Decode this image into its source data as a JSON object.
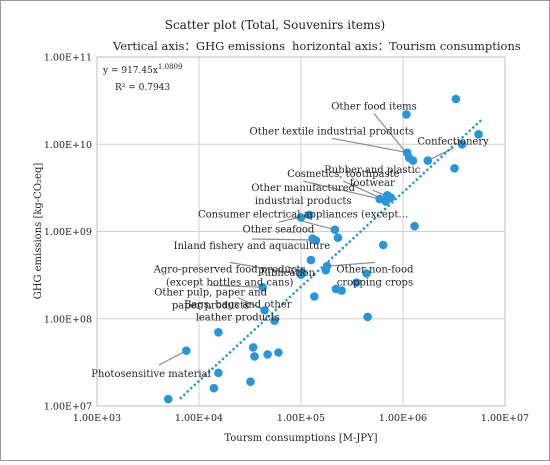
{
  "chart_data": {
    "type": "scatter",
    "title": "Scatter plot (Total, Souvenirs items)",
    "subtitle_left": "Vertical axis：GHG emissions",
    "subtitle_right": "horizontal axis：Tourism consumptions",
    "xlabel": "Toursm consumptions [M-JPY]",
    "ylabel": "GHG emissions [kg-CO₂eq]",
    "xscale": "log",
    "yscale": "log",
    "xlim": [
      1000,
      10000000
    ],
    "ylim": [
      10000000,
      100000000000
    ],
    "grid": true,
    "x_ticks": [
      {
        "value": 1000,
        "label": "1.00E+03"
      },
      {
        "value": 10000,
        "label": "1.00E+04"
      },
      {
        "value": 100000,
        "label": "1.00E+05"
      },
      {
        "value": 1000000,
        "label": "1.00E+06"
      },
      {
        "value": 10000000,
        "label": "1.00E+07"
      }
    ],
    "y_ticks": [
      {
        "value": 10000000,
        "label": "1.00E+07"
      },
      {
        "value": 100000000,
        "label": "1.00E+08"
      },
      {
        "value": 1000000000,
        "label": "1.00E+09"
      },
      {
        "value": 10000000000,
        "label": "1.00E+10"
      },
      {
        "value": 100000000000,
        "label": "1.00E+11"
      }
    ],
    "trendline": {
      "equation": "y = 917.45x",
      "exponent": "1.0809",
      "r_squared": "R² = 0.7943",
      "a": 917.45,
      "b": 1.0809,
      "x_range": [
        6500,
        6000000
      ]
    },
    "points": [
      {
        "x": 5000,
        "y": 12000000
      },
      {
        "x": 7500,
        "y": 43000000
      },
      {
        "x": 14000,
        "y": 16000000
      },
      {
        "x": 15500,
        "y": 24000000
      },
      {
        "x": 15500,
        "y": 70000000
      },
      {
        "x": 32000,
        "y": 19000000
      },
      {
        "x": 34000,
        "y": 47000000
      },
      {
        "x": 35000,
        "y": 37000000
      },
      {
        "x": 47000,
        "y": 39000000
      },
      {
        "x": 60000,
        "y": 41000000
      },
      {
        "x": 42000,
        "y": 230000000
      },
      {
        "x": 44000,
        "y": 125000000
      },
      {
        "x": 55000,
        "y": 95000000
      },
      {
        "x": 100000,
        "y": 320000000
      },
      {
        "x": 103000,
        "y": 340000000
      },
      {
        "x": 100000,
        "y": 1450000000
      },
      {
        "x": 120000,
        "y": 1550000000
      },
      {
        "x": 125000,
        "y": 470000000
      },
      {
        "x": 130000,
        "y": 830000000
      },
      {
        "x": 140000,
        "y": 790000000
      },
      {
        "x": 135000,
        "y": 180000000
      },
      {
        "x": 175000,
        "y": 360000000
      },
      {
        "x": 180000,
        "y": 400000000
      },
      {
        "x": 215000,
        "y": 1050000000
      },
      {
        "x": 230000,
        "y": 850000000
      },
      {
        "x": 220000,
        "y": 220000000
      },
      {
        "x": 250000,
        "y": 210000000
      },
      {
        "x": 350000,
        "y": 260000000
      },
      {
        "x": 440000,
        "y": 330000000
      },
      {
        "x": 450000,
        "y": 105000000
      },
      {
        "x": 590000,
        "y": 2350000000
      },
      {
        "x": 640000,
        "y": 700000000
      },
      {
        "x": 680000,
        "y": 2200000000
      },
      {
        "x": 700000,
        "y": 2600000000
      },
      {
        "x": 760000,
        "y": 2450000000
      },
      {
        "x": 1080000,
        "y": 22000000000
      },
      {
        "x": 1100000,
        "y": 8000000000
      },
      {
        "x": 1150000,
        "y": 7000000000
      },
      {
        "x": 1250000,
        "y": 6500000000
      },
      {
        "x": 1300000,
        "y": 1150000000
      },
      {
        "x": 1750000,
        "y": 6500000000
      },
      {
        "x": 3200000,
        "y": 5300000000
      },
      {
        "x": 3300000,
        "y": 33000000000
      },
      {
        "x": 3800000,
        "y": 10000000000
      },
      {
        "x": 5500000,
        "y": 13000000000
      }
    ],
    "annotations": [
      {
        "lines": [
          "Other food items"
        ],
        "text_x": 520000,
        "text_y": 25000000000,
        "anchor": "middle",
        "target": [
          1180000,
          7000000000
        ]
      },
      {
        "lines": [
          "Other textile industrial products"
        ],
        "text_x": 200000,
        "text_y": 13000000000,
        "anchor": "middle",
        "target": [
          1120000,
          8000000000
        ]
      },
      {
        "lines": [
          "Confectionery"
        ],
        "text_x": 3100000,
        "text_y": 10000000000,
        "anchor": "middle",
        "target": [
          1750000,
          6500000000
        ]
      },
      {
        "lines": [
          "Rubber and plastic",
          "footwear"
        ],
        "text_x": 500000,
        "text_y": 4700000000,
        "anchor": "middle",
        "target": [
          720000,
          2500000000
        ]
      },
      {
        "lines": [
          "Cosmetics, toothpaste"
        ],
        "text_x": 260000,
        "text_y": 4200000000,
        "anchor": "middle",
        "target": [
          690000,
          2250000000
        ]
      },
      {
        "lines": [
          "Other manufactured",
          "industrial products"
        ],
        "text_x": 105000,
        "text_y": 2900000000,
        "anchor": "middle",
        "target": [
          600000,
          2350000000
        ]
      },
      {
        "lines": [
          "Consumer electrical appliances (except…"
        ],
        "text_x": 105000,
        "text_y": 1450000000,
        "anchor": "middle",
        "target": [
          215000,
          1050000000
        ]
      },
      {
        "lines": [
          "Other seafood"
        ],
        "text_x": 60000,
        "text_y": 980000000,
        "anchor": "middle",
        "target": [
          120000,
          1550000000
        ]
      },
      {
        "lines": [
          "Inland fishery and aquaculture"
        ],
        "text_x": 33000,
        "text_y": 630000000,
        "anchor": "middle",
        "target": [
          135000,
          800000000
        ]
      },
      {
        "lines": [
          "Agro-preserved food products",
          "(except bottles and cans)"
        ],
        "text_x": 20000,
        "text_y": 340000000,
        "anchor": "middle",
        "target": [
          100000,
          320000000
        ]
      },
      {
        "lines": [
          "Publication"
        ],
        "text_x": 72000,
        "text_y": 310000000,
        "anchor": "middle",
        "target": [
          103000,
          340000000
        ]
      },
      {
        "lines": [
          "Other non-food",
          "cropping crops"
        ],
        "text_x": 530000,
        "text_y": 340000000,
        "anchor": "middle",
        "target": [
          180000,
          400000000
        ]
      },
      {
        "lines": [
          "Other pulp, paper and",
          "paper products"
        ],
        "text_x": 13000,
        "text_y": 185000000,
        "anchor": "middle",
        "target": [
          42000,
          230000000
        ]
      },
      {
        "lines": [
          "Bags, bags and other",
          "leather products"
        ],
        "text_x": 24000,
        "text_y": 135000000,
        "anchor": "middle",
        "target": [
          44000,
          125000000
        ]
      },
      {
        "lines": [
          "Photosensitive material"
        ],
        "text_x": 3600000,
        "text_y": 0,
        "anchor": "middle",
        "target": [
          7500,
          43000000
        ],
        "label_px": [
          150,
          376
        ]
      }
    ]
  }
}
